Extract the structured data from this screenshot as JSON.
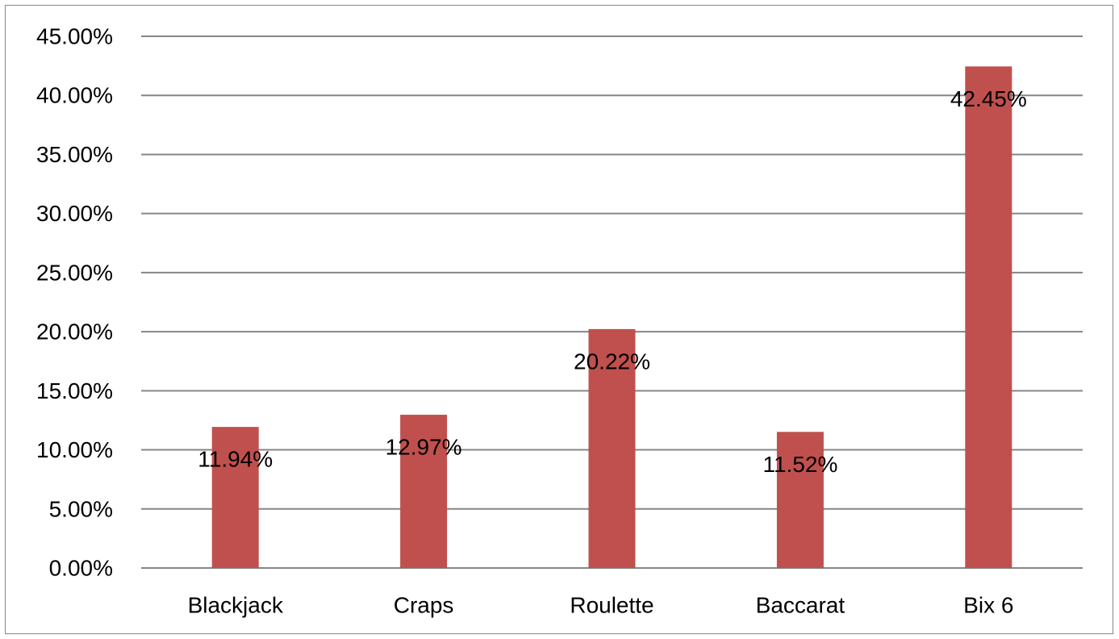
{
  "chart_data": {
    "type": "bar",
    "title": "",
    "xlabel": "",
    "ylabel": "",
    "categories": [
      "Blackjack",
      "Craps",
      "Roulette",
      "Baccarat",
      "Bix 6"
    ],
    "values": [
      11.94,
      12.97,
      20.22,
      11.52,
      42.45
    ],
    "data_labels": [
      "11.94%",
      "12.97%",
      "20.22%",
      "11.52%",
      "42.45%"
    ],
    "ylim": [
      0,
      45
    ],
    "yticks": [
      0,
      5,
      10,
      15,
      20,
      25,
      30,
      35,
      40,
      45
    ],
    "ytick_labels": [
      "0.00%",
      "5.00%",
      "10.00%",
      "15.00%",
      "20.00%",
      "25.00%",
      "30.00%",
      "35.00%",
      "40.00%",
      "45.00%"
    ],
    "grid": true,
    "legend": "none",
    "colors": {
      "bar": "#C0504D",
      "grid": "#868686",
      "text": "#000000"
    }
  }
}
